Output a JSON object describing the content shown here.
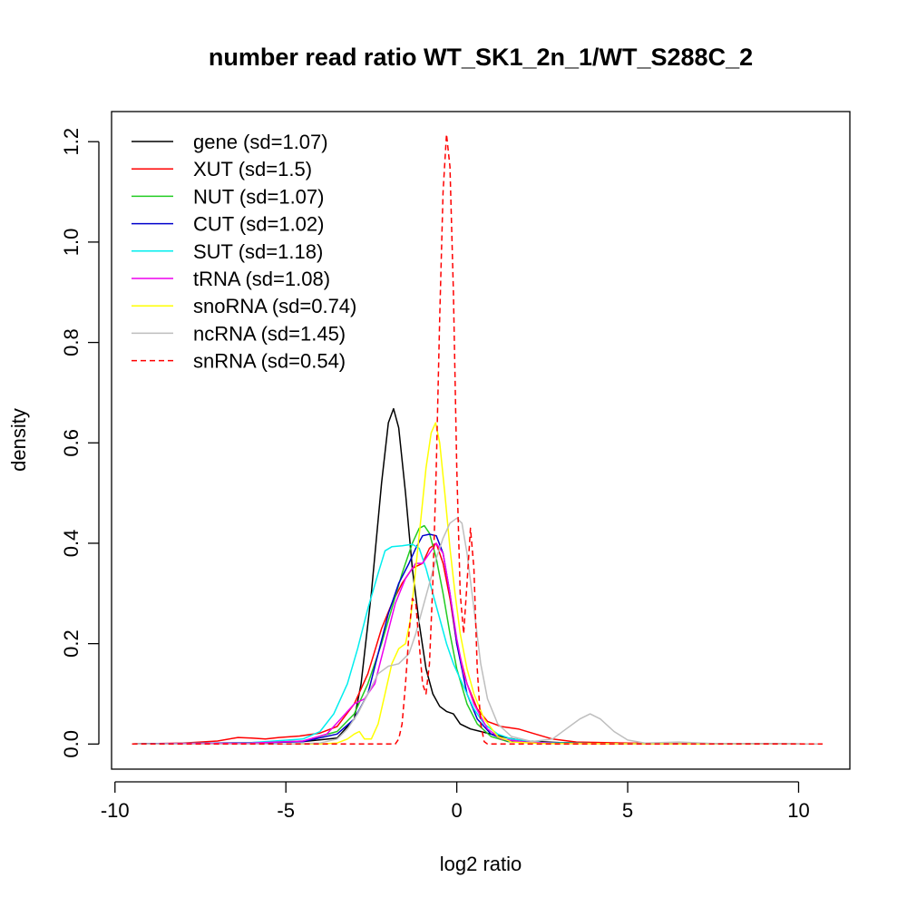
{
  "chart_data": {
    "type": "line",
    "title": "number read ratio WT_SK1_2n_1/WT_S288C_2",
    "xlabel": "log2 ratio",
    "ylabel": "density",
    "xlim": [
      -10.1,
      11.5
    ],
    "ylim": [
      -0.05,
      1.26
    ],
    "xticks": [
      -10,
      -5,
      0,
      5,
      10
    ],
    "xtick_labels": [
      "-10",
      "-5",
      "0",
      "5",
      "10"
    ],
    "yticks": [
      0.0,
      0.2,
      0.4,
      0.6,
      0.8,
      1.0,
      1.2
    ],
    "ytick_labels": [
      "0.0",
      "0.2",
      "0.4",
      "0.6",
      "0.8",
      "1.0",
      "1.2"
    ],
    "grid": false,
    "legend_position": "top-left",
    "series": [
      {
        "name": "gene (sd=1.07)",
        "color": "#000000",
        "dash": false,
        "points": [
          [
            -9.5,
            0
          ],
          [
            -6,
            0.003
          ],
          [
            -4.5,
            0.005
          ],
          [
            -3.5,
            0.012
          ],
          [
            -3.0,
            0.05
          ],
          [
            -2.8,
            0.12
          ],
          [
            -2.5,
            0.3
          ],
          [
            -2.2,
            0.52
          ],
          [
            -2.0,
            0.64
          ],
          [
            -1.85,
            0.668
          ],
          [
            -1.7,
            0.63
          ],
          [
            -1.5,
            0.5
          ],
          [
            -1.3,
            0.35
          ],
          [
            -1.1,
            0.24
          ],
          [
            -0.9,
            0.15
          ],
          [
            -0.7,
            0.1
          ],
          [
            -0.5,
            0.075
          ],
          [
            -0.3,
            0.065
          ],
          [
            -0.1,
            0.06
          ],
          [
            0.1,
            0.04
          ],
          [
            0.4,
            0.03
          ],
          [
            0.7,
            0.025
          ],
          [
            1.0,
            0.02
          ],
          [
            1.5,
            0.012
          ],
          [
            2.0,
            0.006
          ],
          [
            3.0,
            0.003
          ],
          [
            5,
            0.001
          ],
          [
            10.7,
            0
          ]
        ]
      },
      {
        "name": "XUT (sd=1.5)",
        "color": "#ff0000",
        "dash": false,
        "points": [
          [
            -9.5,
            0
          ],
          [
            -8,
            0.002
          ],
          [
            -7,
            0.006
          ],
          [
            -6.4,
            0.013
          ],
          [
            -6.0,
            0.012
          ],
          [
            -5.6,
            0.01
          ],
          [
            -5.2,
            0.013
          ],
          [
            -4.6,
            0.016
          ],
          [
            -4.0,
            0.022
          ],
          [
            -3.5,
            0.035
          ],
          [
            -3.0,
            0.08
          ],
          [
            -2.6,
            0.14
          ],
          [
            -2.2,
            0.23
          ],
          [
            -1.9,
            0.28
          ],
          [
            -1.6,
            0.32
          ],
          [
            -1.3,
            0.35
          ],
          [
            -1.0,
            0.36
          ],
          [
            -0.8,
            0.39
          ],
          [
            -0.6,
            0.4
          ],
          [
            -0.4,
            0.36
          ],
          [
            -0.2,
            0.29
          ],
          [
            0,
            0.2
          ],
          [
            0.3,
            0.12
          ],
          [
            0.6,
            0.07
          ],
          [
            0.9,
            0.045
          ],
          [
            1.3,
            0.035
          ],
          [
            1.8,
            0.03
          ],
          [
            2.3,
            0.02
          ],
          [
            2.8,
            0.01
          ],
          [
            3.5,
            0.004
          ],
          [
            5,
            0.002
          ],
          [
            7,
            0.001
          ],
          [
            10.7,
            0
          ]
        ]
      },
      {
        "name": "NUT (sd=1.07)",
        "color": "#22cc22",
        "dash": false,
        "points": [
          [
            -9.5,
            0
          ],
          [
            -6,
            0.002
          ],
          [
            -4.5,
            0.006
          ],
          [
            -3.5,
            0.025
          ],
          [
            -3.0,
            0.06
          ],
          [
            -2.6,
            0.12
          ],
          [
            -2.2,
            0.2
          ],
          [
            -1.9,
            0.27
          ],
          [
            -1.6,
            0.34
          ],
          [
            -1.3,
            0.4
          ],
          [
            -1.1,
            0.43
          ],
          [
            -0.95,
            0.435
          ],
          [
            -0.8,
            0.42
          ],
          [
            -0.6,
            0.37
          ],
          [
            -0.4,
            0.3
          ],
          [
            -0.2,
            0.22
          ],
          [
            0,
            0.15
          ],
          [
            0.3,
            0.08
          ],
          [
            0.6,
            0.04
          ],
          [
            1.0,
            0.015
          ],
          [
            1.5,
            0.005
          ],
          [
            2.5,
            0.002
          ],
          [
            4,
            0.001
          ],
          [
            10.7,
            0
          ]
        ]
      },
      {
        "name": "CUT (sd=1.02)",
        "color": "#0000cc",
        "dash": false,
        "points": [
          [
            -9.5,
            0
          ],
          [
            -6,
            0.002
          ],
          [
            -4.5,
            0.005
          ],
          [
            -3.5,
            0.02
          ],
          [
            -3.0,
            0.05
          ],
          [
            -2.6,
            0.1
          ],
          [
            -2.3,
            0.18
          ],
          [
            -2.0,
            0.26
          ],
          [
            -1.7,
            0.32
          ],
          [
            -1.4,
            0.36
          ],
          [
            -1.2,
            0.39
          ],
          [
            -1.0,
            0.415
          ],
          [
            -0.8,
            0.418
          ],
          [
            -0.6,
            0.415
          ],
          [
            -0.4,
            0.38
          ],
          [
            -0.2,
            0.3
          ],
          [
            0,
            0.2
          ],
          [
            0.3,
            0.1
          ],
          [
            0.6,
            0.05
          ],
          [
            1.0,
            0.02
          ],
          [
            1.5,
            0.006
          ],
          [
            2.5,
            0.002
          ],
          [
            4,
            0.001
          ],
          [
            10.7,
            0
          ]
        ]
      },
      {
        "name": "SUT (sd=1.18)",
        "color": "#00eeee",
        "dash": false,
        "points": [
          [
            -9.5,
            0
          ],
          [
            -6,
            0.003
          ],
          [
            -4.5,
            0.01
          ],
          [
            -4.0,
            0.025
          ],
          [
            -3.6,
            0.06
          ],
          [
            -3.2,
            0.12
          ],
          [
            -2.9,
            0.19
          ],
          [
            -2.6,
            0.27
          ],
          [
            -2.3,
            0.34
          ],
          [
            -2.1,
            0.385
          ],
          [
            -1.9,
            0.393
          ],
          [
            -1.6,
            0.395
          ],
          [
            -1.3,
            0.398
          ],
          [
            -1.1,
            0.39
          ],
          [
            -0.9,
            0.35
          ],
          [
            -0.7,
            0.3
          ],
          [
            -0.5,
            0.25
          ],
          [
            -0.3,
            0.2
          ],
          [
            -0.1,
            0.16
          ],
          [
            0.1,
            0.13
          ],
          [
            0.3,
            0.1
          ],
          [
            0.5,
            0.07
          ],
          [
            0.8,
            0.04
          ],
          [
            1.2,
            0.02
          ],
          [
            1.6,
            0.01
          ],
          [
            2.5,
            0.003
          ],
          [
            4,
            0.001
          ],
          [
            10.7,
            0
          ]
        ]
      },
      {
        "name": "tRNA (sd=1.08)",
        "color": "#ee00ee",
        "dash": false,
        "points": [
          [
            -9.5,
            0
          ],
          [
            -6,
            0.002
          ],
          [
            -4.5,
            0.006
          ],
          [
            -3.8,
            0.02
          ],
          [
            -3.4,
            0.05
          ],
          [
            -3.0,
            0.08
          ],
          [
            -2.7,
            0.09
          ],
          [
            -2.4,
            0.12
          ],
          [
            -2.1,
            0.2
          ],
          [
            -1.8,
            0.28
          ],
          [
            -1.5,
            0.33
          ],
          [
            -1.2,
            0.36
          ],
          [
            -1.0,
            0.36
          ],
          [
            -0.8,
            0.38
          ],
          [
            -0.6,
            0.4
          ],
          [
            -0.4,
            0.38
          ],
          [
            -0.2,
            0.3
          ],
          [
            0,
            0.21
          ],
          [
            0.2,
            0.14
          ],
          [
            0.5,
            0.08
          ],
          [
            0.9,
            0.03
          ],
          [
            1.3,
            0.01
          ],
          [
            2,
            0.004
          ],
          [
            3,
            0.001
          ],
          [
            10.7,
            0
          ]
        ]
      },
      {
        "name": "snoRNA (sd=0.74)",
        "color": "#ffff00",
        "dash": false,
        "points": [
          [
            -9.5,
            0
          ],
          [
            -4,
            0
          ],
          [
            -3.5,
            0.002
          ],
          [
            -3.2,
            0.01
          ],
          [
            -3.0,
            0.02
          ],
          [
            -2.85,
            0.025
          ],
          [
            -2.7,
            0.01
          ],
          [
            -2.5,
            0.01
          ],
          [
            -2.3,
            0.04
          ],
          [
            -2.1,
            0.1
          ],
          [
            -1.9,
            0.16
          ],
          [
            -1.7,
            0.19
          ],
          [
            -1.5,
            0.2
          ],
          [
            -1.35,
            0.25
          ],
          [
            -1.2,
            0.35
          ],
          [
            -1.05,
            0.45
          ],
          [
            -0.9,
            0.55
          ],
          [
            -0.75,
            0.62
          ],
          [
            -0.62,
            0.64
          ],
          [
            -0.5,
            0.6
          ],
          [
            -0.35,
            0.5
          ],
          [
            -0.2,
            0.39
          ],
          [
            -0.05,
            0.3
          ],
          [
            0.1,
            0.22
          ],
          [
            0.3,
            0.15
          ],
          [
            0.5,
            0.1
          ],
          [
            0.8,
            0.05
          ],
          [
            1.2,
            0.015
          ],
          [
            1.6,
            0.004
          ],
          [
            2.5,
            0.001
          ],
          [
            10.7,
            0
          ]
        ]
      },
      {
        "name": "ncRNA (sd=1.45)",
        "color": "#bebebe",
        "dash": false,
        "points": [
          [
            -9.5,
            0
          ],
          [
            -5,
            0
          ],
          [
            -4,
            0.002
          ],
          [
            -3.5,
            0.01
          ],
          [
            -3.2,
            0.03
          ],
          [
            -2.9,
            0.06
          ],
          [
            -2.6,
            0.1
          ],
          [
            -2.3,
            0.14
          ],
          [
            -2.0,
            0.155
          ],
          [
            -1.7,
            0.16
          ],
          [
            -1.4,
            0.18
          ],
          [
            -1.2,
            0.22
          ],
          [
            -1.0,
            0.27
          ],
          [
            -0.8,
            0.32
          ],
          [
            -0.6,
            0.37
          ],
          [
            -0.4,
            0.41
          ],
          [
            -0.2,
            0.44
          ],
          [
            0,
            0.45
          ],
          [
            0.15,
            0.44
          ],
          [
            0.3,
            0.38
          ],
          [
            0.5,
            0.27
          ],
          [
            0.7,
            0.16
          ],
          [
            0.9,
            0.09
          ],
          [
            1.2,
            0.04
          ],
          [
            1.6,
            0.015
          ],
          [
            2.2,
            0.005
          ],
          [
            2.8,
            0.01
          ],
          [
            3.2,
            0.03
          ],
          [
            3.6,
            0.05
          ],
          [
            3.9,
            0.06
          ],
          [
            4.2,
            0.05
          ],
          [
            4.6,
            0.025
          ],
          [
            5.0,
            0.008
          ],
          [
            5.5,
            0.002
          ],
          [
            6.5,
            0.004
          ],
          [
            7.5,
            0.001
          ],
          [
            10.7,
            0
          ]
        ]
      },
      {
        "name": "snRNA (sd=0.54)",
        "color": "#ff0000",
        "dash": true,
        "points": [
          [
            -9.5,
            0
          ],
          [
            -1.8,
            0
          ],
          [
            -1.7,
            0.01
          ],
          [
            -1.6,
            0.04
          ],
          [
            -1.5,
            0.12
          ],
          [
            -1.4,
            0.22
          ],
          [
            -1.3,
            0.29
          ],
          [
            -1.2,
            0.28
          ],
          [
            -1.1,
            0.2
          ],
          [
            -1.0,
            0.12
          ],
          [
            -0.9,
            0.1
          ],
          [
            -0.8,
            0.16
          ],
          [
            -0.7,
            0.32
          ],
          [
            -0.6,
            0.55
          ],
          [
            -0.5,
            0.85
          ],
          [
            -0.4,
            1.1
          ],
          [
            -0.3,
            1.215
          ],
          [
            -0.2,
            1.15
          ],
          [
            -0.1,
            0.9
          ],
          [
            0,
            0.55
          ],
          [
            0.1,
            0.3
          ],
          [
            0.2,
            0.22
          ],
          [
            0.3,
            0.32
          ],
          [
            0.4,
            0.43
          ],
          [
            0.5,
            0.35
          ],
          [
            0.6,
            0.15
          ],
          [
            0.7,
            0.04
          ],
          [
            0.8,
            0.005
          ],
          [
            0.9,
            0
          ],
          [
            10.7,
            0
          ]
        ]
      }
    ]
  }
}
